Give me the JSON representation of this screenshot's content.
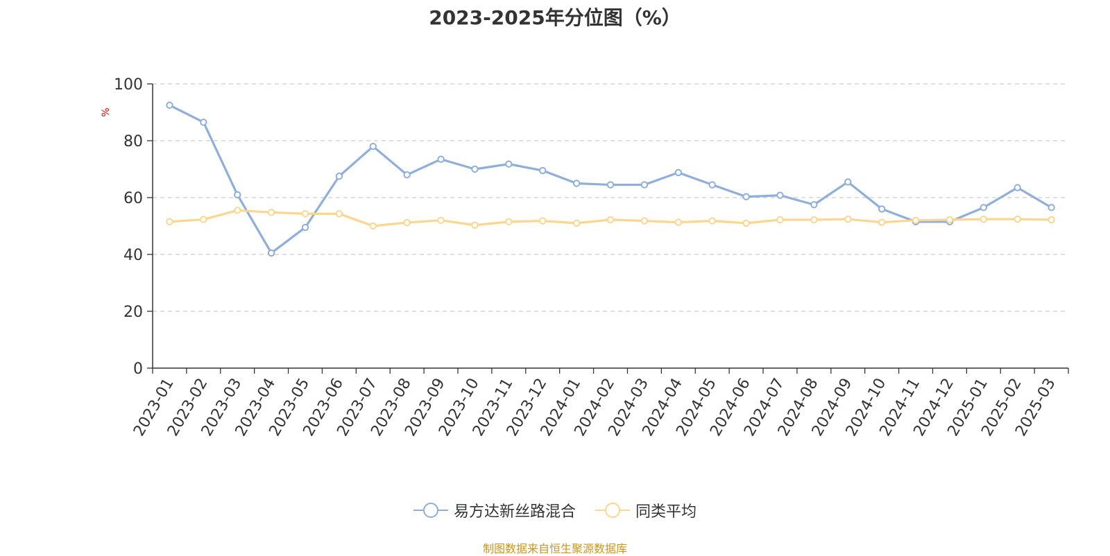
{
  "chart_data": {
    "type": "line",
    "title": "2023-2025年分位图（%）",
    "ylabel": "%",
    "ylim": [
      0,
      100
    ],
    "yticks": [
      0,
      20,
      40,
      60,
      80,
      100
    ],
    "grid": true,
    "legend_position": "bottom",
    "categories": [
      "2023-01",
      "2023-02",
      "2023-03",
      "2023-04",
      "2023-05",
      "2023-06",
      "2023-07",
      "2023-08",
      "2023-09",
      "2023-10",
      "2023-11",
      "2023-12",
      "2024-01",
      "2024-02",
      "2024-03",
      "2024-04",
      "2024-05",
      "2024-06",
      "2024-07",
      "2024-08",
      "2024-09",
      "2024-10",
      "2024-11",
      "2024-12",
      "2025-01",
      "2025-02",
      "2025-03"
    ],
    "series": [
      {
        "name": "易方达新丝路混合",
        "color": "#8eaedb",
        "values": [
          92.5,
          86.5,
          61,
          40.5,
          49.5,
          67.5,
          78,
          68,
          73.5,
          70,
          71.8,
          69.5,
          65,
          64.5,
          64.5,
          68.8,
          64.5,
          60.3,
          60.8,
          57.5,
          65.5,
          56,
          51.5,
          51.5,
          56.5,
          63.5,
          56.5
        ]
      },
      {
        "name": "同类平均",
        "color": "#fcd68f",
        "values": [
          51.5,
          52.3,
          55.5,
          54.8,
          54.3,
          54.3,
          50,
          51.2,
          52,
          50.3,
          51.5,
          51.8,
          51,
          52.2,
          51.8,
          51.3,
          51.8,
          51,
          52.2,
          52.2,
          52.4,
          51.3,
          52,
          52.2,
          52.4,
          52.4,
          52.2
        ]
      }
    ]
  },
  "source_note": "制图数据来自恒生聚源数据库",
  "colors": {
    "axis": "#333333",
    "grid": "#cccccc",
    "ylabel": "#e60000",
    "source_note": "#c8961e"
  }
}
